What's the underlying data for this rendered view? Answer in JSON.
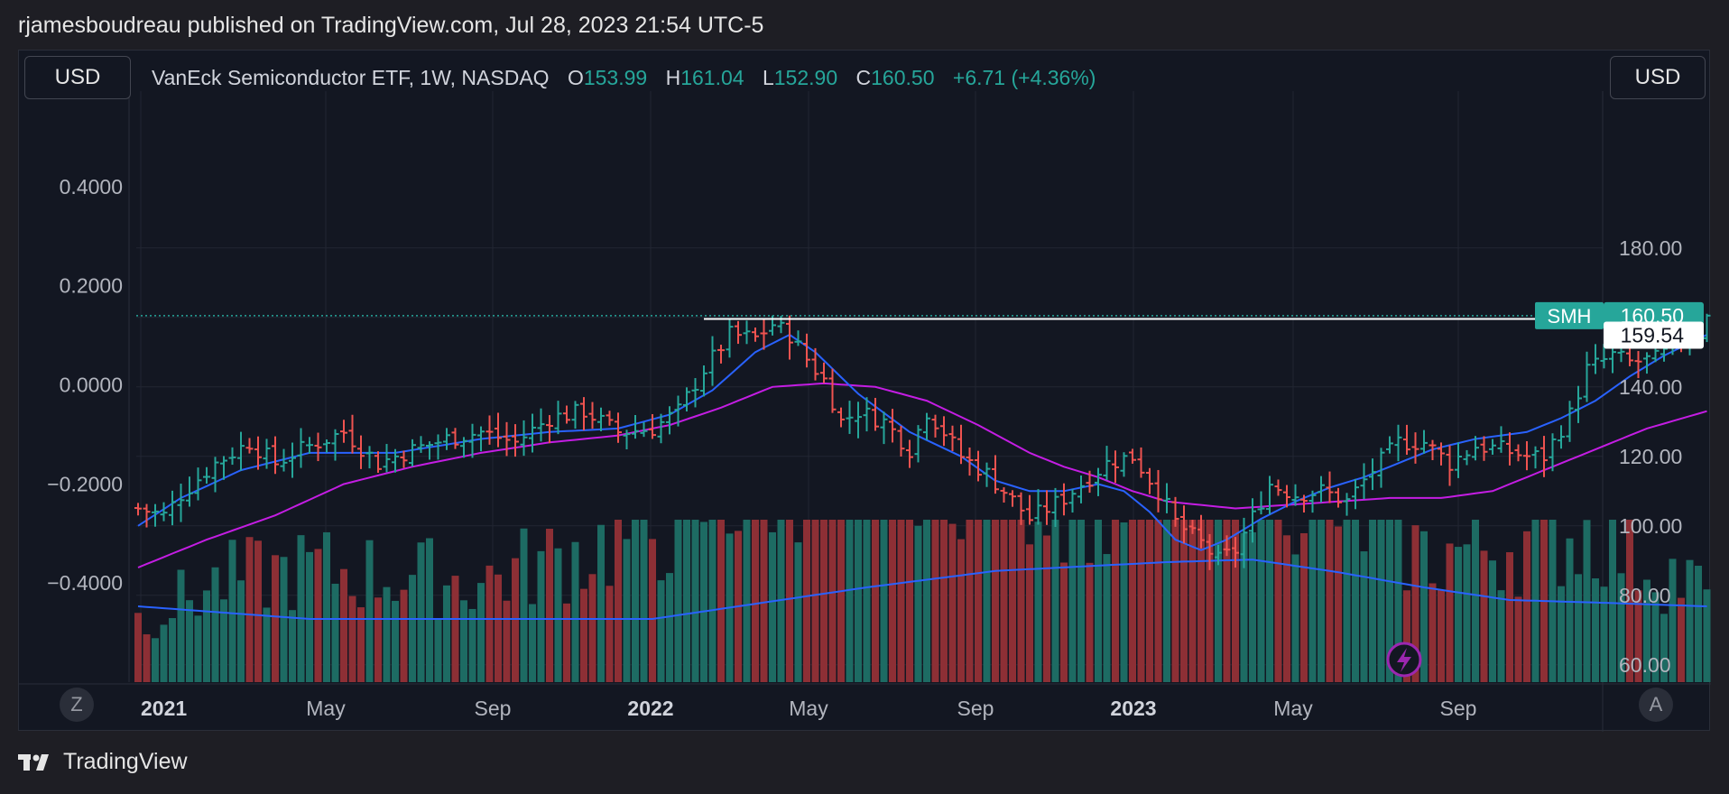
{
  "header": {
    "published": "rjamesboudreau published on TradingView.com, Jul 28, 2023 21:54 UTC-5"
  },
  "toolbar": {
    "currency_left": "USD",
    "currency_right": "USD"
  },
  "legend": {
    "symbol_desc": "VanEck Semiconductor ETF, 1W, NASDAQ",
    "open_label": "O",
    "open": "153.99",
    "high_label": "H",
    "high": "161.04",
    "low_label": "L",
    "low": "152.90",
    "close_label": "C",
    "close": "160.50",
    "change": "+6.71 (+4.36%)"
  },
  "scale_buttons": {
    "left": "Z",
    "right": "A"
  },
  "footer": {
    "brand": "TradingView"
  },
  "colors": {
    "up": "#26a69a",
    "down": "#ef5350",
    "ma_short": "#2962ff",
    "ma_long": "#c41de3",
    "vol_up": "#1d6b63",
    "vol_down": "#8d2f35",
    "vol_ma": "#2962ff"
  },
  "chart_data": {
    "type": "ohlc-bar",
    "symbol": "SMH",
    "interval": "1W",
    "right_axis": {
      "ticks": [
        "180.00",
        "140.00",
        "120.00",
        "100.00",
        "80.00",
        "60.00"
      ],
      "range": [
        55,
        187
      ]
    },
    "left_axis": {
      "ticks": [
        "0.4000",
        "0.2000",
        "0.0000",
        "−0.2000",
        "−0.4000"
      ],
      "range": [
        -0.6,
        0.5
      ]
    },
    "x_axis": {
      "ticks": [
        "2021",
        "May",
        "Sep",
        "2022",
        "May",
        "Sep",
        "2023",
        "May",
        "Sep"
      ],
      "bold": [
        "2021",
        "2022",
        "2023"
      ]
    },
    "last_price": {
      "label": "SMH",
      "value": "160.50"
    },
    "horizontal_line": {
      "value": "159.54"
    },
    "price_anchors": [
      [
        0,
        105
      ],
      [
        3,
        103
      ],
      [
        5,
        109
      ],
      [
        9,
        118
      ],
      [
        13,
        124
      ],
      [
        16,
        118
      ],
      [
        19,
        122
      ],
      [
        24,
        127
      ],
      [
        28,
        118
      ],
      [
        31,
        121
      ],
      [
        36,
        125
      ],
      [
        40,
        127
      ],
      [
        44,
        124
      ],
      [
        48,
        131
      ],
      [
        52,
        133
      ],
      [
        56,
        127
      ],
      [
        60,
        128
      ],
      [
        63,
        133
      ],
      [
        66,
        145
      ],
      [
        69,
        155
      ],
      [
        72,
        154
      ],
      [
        74,
        158
      ],
      [
        76,
        155
      ],
      [
        78,
        148
      ],
      [
        80,
        142
      ],
      [
        82,
        130
      ],
      [
        84,
        133
      ],
      [
        87,
        130
      ],
      [
        90,
        122
      ],
      [
        92,
        133
      ],
      [
        94,
        127
      ],
      [
        96,
        120
      ],
      [
        99,
        115
      ],
      [
        101,
        110
      ],
      [
        104,
        102
      ],
      [
        108,
        108
      ],
      [
        113,
        118
      ],
      [
        116,
        120
      ],
      [
        119,
        110
      ],
      [
        121,
        101
      ],
      [
        124,
        95
      ],
      [
        126,
        90
      ],
      [
        128,
        93
      ],
      [
        132,
        112
      ],
      [
        135,
        109
      ],
      [
        138,
        110
      ],
      [
        141,
        107
      ],
      [
        144,
        116
      ],
      [
        147,
        124
      ],
      [
        150,
        124
      ],
      [
        153,
        118
      ],
      [
        156,
        123
      ],
      [
        159,
        122
      ],
      [
        162,
        120
      ],
      [
        164,
        120
      ],
      [
        167,
        132
      ],
      [
        169,
        145
      ],
      [
        172,
        149
      ],
      [
        174,
        147
      ],
      [
        177,
        148
      ],
      [
        179,
        151
      ],
      [
        181,
        157
      ],
      [
        183,
        160.5
      ]
    ],
    "ma_short_anchors": [
      [
        0,
        100
      ],
      [
        5,
        108
      ],
      [
        12,
        116
      ],
      [
        20,
        121
      ],
      [
        30,
        121
      ],
      [
        40,
        125
      ],
      [
        48,
        127
      ],
      [
        56,
        128
      ],
      [
        62,
        132
      ],
      [
        67,
        139
      ],
      [
        72,
        150
      ],
      [
        76,
        155
      ],
      [
        79,
        150
      ],
      [
        84,
        138
      ],
      [
        90,
        127
      ],
      [
        96,
        120
      ],
      [
        100,
        113
      ],
      [
        104,
        110
      ],
      [
        108,
        110
      ],
      [
        112,
        112
      ],
      [
        115,
        110
      ],
      [
        118,
        104
      ],
      [
        121,
        96
      ],
      [
        124,
        93
      ],
      [
        127,
        96
      ],
      [
        131,
        102
      ],
      [
        135,
        107
      ],
      [
        139,
        111
      ],
      [
        143,
        114
      ],
      [
        147,
        118
      ],
      [
        151,
        122
      ],
      [
        156,
        125
      ],
      [
        162,
        127
      ],
      [
        166,
        131
      ],
      [
        170,
        136
      ],
      [
        174,
        143
      ],
      [
        178,
        149
      ],
      [
        183,
        155
      ]
    ],
    "ma_long_anchors": [
      [
        0,
        88
      ],
      [
        8,
        96
      ],
      [
        16,
        103
      ],
      [
        24,
        112
      ],
      [
        32,
        117
      ],
      [
        40,
        121
      ],
      [
        48,
        124
      ],
      [
        56,
        126
      ],
      [
        62,
        129
      ],
      [
        68,
        134
      ],
      [
        74,
        140
      ],
      [
        80,
        141
      ],
      [
        86,
        140
      ],
      [
        92,
        136
      ],
      [
        98,
        129
      ],
      [
        104,
        121
      ],
      [
        108,
        117
      ],
      [
        112,
        114
      ],
      [
        116,
        110
      ],
      [
        120,
        107
      ],
      [
        124,
        106
      ],
      [
        128,
        105
      ],
      [
        134,
        106
      ],
      [
        140,
        107
      ],
      [
        146,
        108
      ],
      [
        152,
        108
      ],
      [
        158,
        110
      ],
      [
        164,
        116
      ],
      [
        170,
        122
      ],
      [
        176,
        128
      ],
      [
        183,
        133
      ]
    ],
    "volume_anchors": [
      [
        0,
        5
      ],
      [
        10,
        8
      ],
      [
        20,
        9
      ],
      [
        40,
        8
      ],
      [
        60,
        12
      ],
      [
        75,
        17
      ],
      [
        85,
        22
      ],
      [
        95,
        19
      ],
      [
        110,
        15
      ],
      [
        120,
        18
      ],
      [
        130,
        19
      ],
      [
        140,
        14
      ],
      [
        150,
        10
      ],
      [
        160,
        11
      ],
      [
        170,
        12
      ],
      [
        183,
        7
      ]
    ],
    "volume_ma_anchors": [
      [
        0,
        6
      ],
      [
        20,
        5
      ],
      [
        40,
        5
      ],
      [
        60,
        5
      ],
      [
        70,
        6
      ],
      [
        85,
        7.5
      ],
      [
        100,
        8.8
      ],
      [
        120,
        9.5
      ],
      [
        130,
        9.7
      ],
      [
        140,
        8.7
      ],
      [
        150,
        7.5
      ],
      [
        160,
        6.5
      ],
      [
        170,
        6.3
      ],
      [
        183,
        6
      ]
    ]
  }
}
